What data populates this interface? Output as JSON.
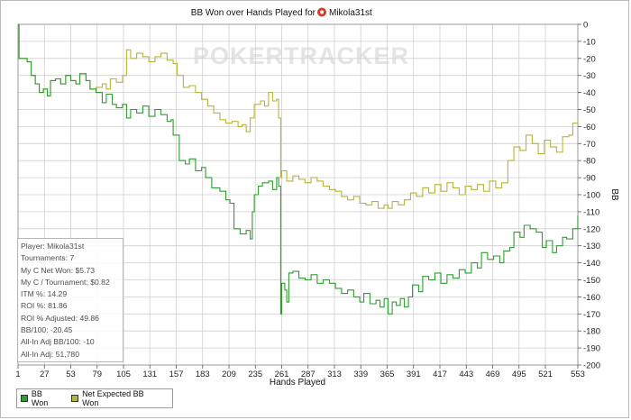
{
  "chart_data": {
    "type": "line",
    "title": "BB Won over Hands Played for",
    "title_player": "Mikola31st",
    "title_icon": "poker-chip-icon",
    "watermark": "POKERTRACKER",
    "xlabel": "Hands Played",
    "ylabel": "BB",
    "xlim": [
      1,
      553
    ],
    "ylim": [
      -200,
      0
    ],
    "x_ticks": [
      1,
      27,
      53,
      79,
      105,
      131,
      157,
      183,
      209,
      235,
      261,
      287,
      313,
      339,
      365,
      391,
      417,
      443,
      469,
      495,
      521,
      553
    ],
    "y_ticks": [
      0,
      -10,
      -20,
      -30,
      -40,
      -50,
      -60,
      -70,
      -80,
      -90,
      -100,
      -110,
      -120,
      -130,
      -140,
      -150,
      -160,
      -170,
      -180,
      -190,
      -200
    ],
    "grid": true,
    "legend_position": "bottom-left",
    "series": [
      {
        "name": "BB Won",
        "color": "#2f9e2f",
        "points": [
          [
            1,
            0
          ],
          [
            2,
            -20
          ],
          [
            10,
            -22
          ],
          [
            14,
            -30
          ],
          [
            18,
            -35
          ],
          [
            22,
            -40
          ],
          [
            26,
            -38
          ],
          [
            30,
            -42
          ],
          [
            33,
            -33
          ],
          [
            38,
            -32
          ],
          [
            43,
            -35
          ],
          [
            48,
            -30
          ],
          [
            53,
            -33
          ],
          [
            58,
            -35
          ],
          [
            62,
            -29
          ],
          [
            68,
            -33
          ],
          [
            72,
            -38
          ],
          [
            78,
            -40
          ],
          [
            84,
            -46
          ],
          [
            88,
            -41
          ],
          [
            94,
            -47
          ],
          [
            98,
            -49
          ],
          [
            104,
            -47
          ],
          [
            108,
            -55
          ],
          [
            112,
            -50
          ],
          [
            118,
            -52
          ],
          [
            124,
            -48
          ],
          [
            130,
            -54
          ],
          [
            136,
            -50
          ],
          [
            142,
            -53
          ],
          [
            148,
            -57
          ],
          [
            152,
            -56
          ],
          [
            154,
            -65
          ],
          [
            160,
            -80
          ],
          [
            166,
            -82
          ],
          [
            170,
            -79
          ],
          [
            176,
            -86
          ],
          [
            182,
            -84
          ],
          [
            186,
            -90
          ],
          [
            192,
            -96
          ],
          [
            200,
            -98
          ],
          [
            206,
            -103
          ],
          [
            210,
            -105
          ],
          [
            214,
            -120
          ],
          [
            220,
            -123
          ],
          [
            226,
            -121
          ],
          [
            230,
            -126
          ],
          [
            232,
            -110
          ],
          [
            234,
            -100
          ],
          [
            238,
            -95
          ],
          [
            242,
            -93
          ],
          [
            248,
            -92
          ],
          [
            252,
            -97
          ],
          [
            256,
            -90
          ],
          [
            258,
            -95
          ],
          [
            260,
            -170
          ],
          [
            261,
            -152
          ],
          [
            264,
            -156
          ],
          [
            266,
            -163
          ],
          [
            268,
            -146
          ],
          [
            272,
            -145
          ],
          [
            278,
            -149
          ],
          [
            284,
            -150
          ],
          [
            290,
            -147
          ],
          [
            296,
            -152
          ],
          [
            302,
            -150
          ],
          [
            308,
            -152
          ],
          [
            314,
            -155
          ],
          [
            320,
            -158
          ],
          [
            326,
            -156
          ],
          [
            332,
            -160
          ],
          [
            338,
            -163
          ],
          [
            342,
            -158
          ],
          [
            348,
            -164
          ],
          [
            354,
            -162
          ],
          [
            358,
            -166
          ],
          [
            362,
            -161
          ],
          [
            366,
            -170
          ],
          [
            370,
            -163
          ],
          [
            374,
            -165
          ],
          [
            378,
            -161
          ],
          [
            382,
            -166
          ],
          [
            386,
            -160
          ],
          [
            390,
            -153
          ],
          [
            396,
            -157
          ],
          [
            400,
            -148
          ],
          [
            406,
            -150
          ],
          [
            412,
            -146
          ],
          [
            418,
            -152
          ],
          [
            424,
            -147
          ],
          [
            430,
            -149
          ],
          [
            436,
            -144
          ],
          [
            442,
            -146
          ],
          [
            448,
            -140
          ],
          [
            454,
            -143
          ],
          [
            458,
            -134
          ],
          [
            464,
            -138
          ],
          [
            470,
            -136
          ],
          [
            476,
            -140
          ],
          [
            480,
            -133
          ],
          [
            486,
            -131
          ],
          [
            490,
            -122
          ],
          [
            496,
            -125
          ],
          [
            500,
            -118
          ],
          [
            506,
            -120
          ],
          [
            512,
            -122
          ],
          [
            518,
            -131
          ],
          [
            522,
            -127
          ],
          [
            528,
            -134
          ],
          [
            532,
            -130
          ],
          [
            538,
            -125
          ],
          [
            542,
            -126
          ],
          [
            548,
            -120
          ],
          [
            553,
            -112
          ]
        ]
      },
      {
        "name": "Net Expected BB Won",
        "color": "#b5b53a",
        "points": [
          [
            1,
            0
          ],
          [
            2,
            -20
          ],
          [
            10,
            -22
          ],
          [
            14,
            -30
          ],
          [
            18,
            -35
          ],
          [
            22,
            -40
          ],
          [
            26,
            -38
          ],
          [
            30,
            -42
          ],
          [
            33,
            -33
          ],
          [
            38,
            -32
          ],
          [
            43,
            -35
          ],
          [
            48,
            -30
          ],
          [
            53,
            -33
          ],
          [
            58,
            -35
          ],
          [
            62,
            -29
          ],
          [
            68,
            -33
          ],
          [
            72,
            -38
          ],
          [
            78,
            -37
          ],
          [
            84,
            -35
          ],
          [
            88,
            -38
          ],
          [
            92,
            -32
          ],
          [
            98,
            -34
          ],
          [
            104,
            -30
          ],
          [
            108,
            -15
          ],
          [
            112,
            -20
          ],
          [
            118,
            -17
          ],
          [
            124,
            -19
          ],
          [
            130,
            -22
          ],
          [
            136,
            -19
          ],
          [
            142,
            -17
          ],
          [
            148,
            -21
          ],
          [
            154,
            -23
          ],
          [
            158,
            -30
          ],
          [
            164,
            -37
          ],
          [
            170,
            -36
          ],
          [
            176,
            -40
          ],
          [
            182,
            -44
          ],
          [
            188,
            -48
          ],
          [
            194,
            -52
          ],
          [
            200,
            -56
          ],
          [
            206,
            -58
          ],
          [
            212,
            -57
          ],
          [
            218,
            -60
          ],
          [
            222,
            -59
          ],
          [
            226,
            -63
          ],
          [
            230,
            -55
          ],
          [
            234,
            -47
          ],
          [
            240,
            -45
          ],
          [
            244,
            -48
          ],
          [
            248,
            -40
          ],
          [
            252,
            -45
          ],
          [
            256,
            -44
          ],
          [
            258,
            -55
          ],
          [
            260,
            -90
          ],
          [
            261,
            -86
          ],
          [
            266,
            -92
          ],
          [
            272,
            -89
          ],
          [
            278,
            -91
          ],
          [
            284,
            -93
          ],
          [
            290,
            -90
          ],
          [
            296,
            -92
          ],
          [
            302,
            -95
          ],
          [
            308,
            -97
          ],
          [
            314,
            -98
          ],
          [
            320,
            -101
          ],
          [
            326,
            -103
          ],
          [
            332,
            -101
          ],
          [
            338,
            -105
          ],
          [
            344,
            -106
          ],
          [
            350,
            -104
          ],
          [
            356,
            -108
          ],
          [
            362,
            -106
          ],
          [
            366,
            -108
          ],
          [
            370,
            -104
          ],
          [
            376,
            -106
          ],
          [
            382,
            -103
          ],
          [
            388,
            -99
          ],
          [
            394,
            -101
          ],
          [
            400,
            -96
          ],
          [
            406,
            -99
          ],
          [
            412,
            -94
          ],
          [
            418,
            -98
          ],
          [
            424,
            -93
          ],
          [
            430,
            -96
          ],
          [
            436,
            -100
          ],
          [
            442,
            -95
          ],
          [
            448,
            -97
          ],
          [
            454,
            -94
          ],
          [
            460,
            -98
          ],
          [
            466,
            -92
          ],
          [
            472,
            -96
          ],
          [
            478,
            -93
          ],
          [
            484,
            -80
          ],
          [
            490,
            -72
          ],
          [
            496,
            -74
          ],
          [
            502,
            -65
          ],
          [
            508,
            -70
          ],
          [
            514,
            -76
          ],
          [
            520,
            -68
          ],
          [
            526,
            -72
          ],
          [
            532,
            -75
          ],
          [
            538,
            -66
          ],
          [
            544,
            -65
          ],
          [
            548,
            -58
          ],
          [
            553,
            -58
          ]
        ]
      }
    ]
  },
  "stats": [
    "Player: Mikola31st",
    "Tournaments: 7",
    "My C Net Won: $5.73",
    "My C / Tournament: $0.82",
    "ITM %: 14.29",
    "ROI %: 81.86",
    "ROI % Adjusted: 49.86",
    "BB/100: -20.45",
    "All-In Adj BB/100: -10",
    "All-In Adj: 51,780"
  ],
  "legend": [
    {
      "label": "BB Won",
      "color": "#2f9e2f"
    },
    {
      "label": "Net Expected BB Won",
      "color": "#b5b53a"
    }
  ]
}
